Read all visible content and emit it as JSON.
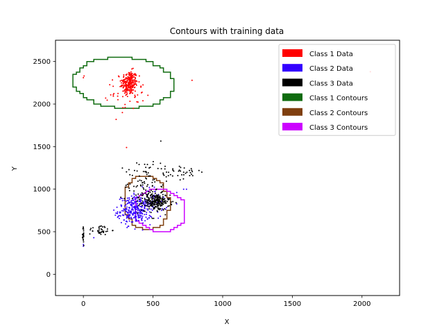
{
  "chart_data": {
    "type": "scatter",
    "title": "Contours with training data",
    "xlabel": "X",
    "ylabel": "Y",
    "xlim": [
      -200,
      2270
    ],
    "ylim": [
      -250,
      2750
    ],
    "xticks": [
      0,
      500,
      1000,
      1500,
      2000
    ],
    "yticks": [
      0,
      500,
      1000,
      1500,
      2000,
      2500
    ],
    "legend_position": "top-right",
    "grid": false,
    "legend": [
      {
        "label": "Class 1 Data",
        "color": "#ff0000"
      },
      {
        "label": "Class 2 Data",
        "color": "#3300ff"
      },
      {
        "label": "Class 3 Data",
        "color": "#000000"
      },
      {
        "label": "Class 1 Contours",
        "color": "#0f6b0f"
      },
      {
        "label": "Class 2 Contours",
        "color": "#7f3f0f"
      },
      {
        "label": "Class 3 Contours",
        "color": "#cc00ff"
      }
    ],
    "contours": [
      {
        "name": "Class 1 Contours",
        "color": "#0f6b0f",
        "cx": 290,
        "cy": 2250,
        "rx": 730,
        "ry": 590,
        "cut_top": 2740
      },
      {
        "name": "Class 2 Contours",
        "color": "#7f3f0f",
        "cx": 455,
        "cy": 840,
        "rx": 320,
        "ry": 630
      },
      {
        "name": "Class 3 Contours",
        "color": "#cc00ff",
        "cx": 550,
        "cy": 750,
        "rx": 370,
        "ry": 520
      }
    ],
    "series": [
      {
        "name": "Class 1 Data",
        "color": "#ff0000",
        "clusters": [
          {
            "cx": 330,
            "cy": 2250,
            "sx": 30,
            "sy": 70,
            "n": 240
          },
          {
            "cx": 320,
            "cy": 2120,
            "sx": 60,
            "sy": 90,
            "n": 40
          }
        ],
        "points": [
          [
            0,
            2310
          ],
          [
            5,
            2330
          ],
          [
            160,
            2070
          ],
          [
            215,
            2110
          ],
          [
            235,
            1820
          ],
          [
            280,
            1900
          ],
          [
            300,
            1960
          ],
          [
            310,
            1490
          ],
          [
            780,
            2280
          ],
          [
            2060,
            2380
          ]
        ]
      },
      {
        "name": "Class 2 Data",
        "color": "#3300ff",
        "clusters": [
          {
            "cx": 370,
            "cy": 750,
            "sx": 60,
            "sy": 80,
            "n": 260
          },
          {
            "cx": 460,
            "cy": 840,
            "sx": 70,
            "sy": 90,
            "n": 80
          }
        ],
        "points": [
          [
            0,
            330
          ],
          [
            0,
            350
          ],
          [
            75,
            430
          ],
          [
            250,
            680
          ],
          [
            720,
            1000
          ],
          [
            740,
            1000
          ]
        ]
      },
      {
        "name": "Class 3 Data",
        "color": "#000000",
        "clusters": [
          {
            "cx": 520,
            "cy": 850,
            "sx": 50,
            "sy": 50,
            "n": 220
          },
          {
            "cx": 440,
            "cy": 1050,
            "sx": 70,
            "sy": 150,
            "n": 90
          },
          {
            "cx": 120,
            "cy": 520,
            "sx": 40,
            "sy": 30,
            "n": 35
          },
          {
            "cx": 0,
            "cy": 450,
            "sx": 2,
            "sy": 60,
            "n": 25
          },
          {
            "cx": 660,
            "cy": 1200,
            "sx": 90,
            "sy": 50,
            "n": 40
          }
        ],
        "points": [
          [
            830,
            1220
          ],
          [
            850,
            1200
          ],
          [
            400,
            1290
          ],
          [
            460,
            1290
          ],
          [
            500,
            1290
          ],
          [
            560,
            1240
          ]
        ]
      }
    ]
  }
}
